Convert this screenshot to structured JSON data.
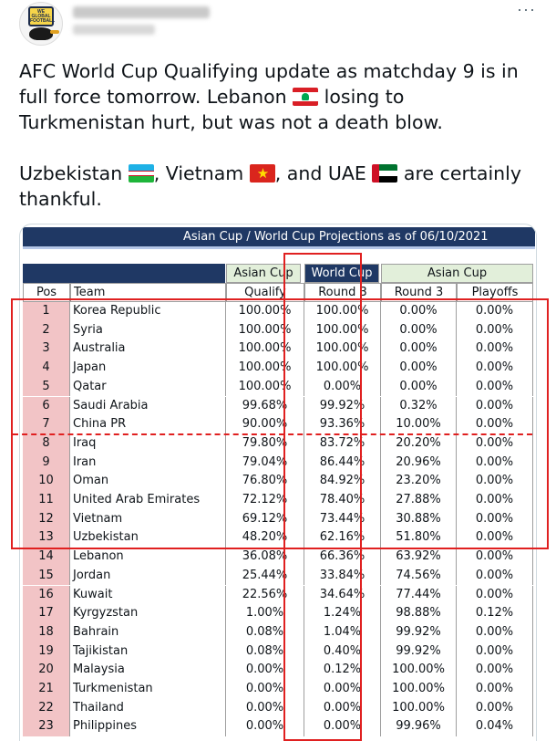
{
  "tweet": {
    "more_label": "···",
    "line1": "AFC World Cup Qualifying update as matchday 9 is in",
    "line2a": "full force tomorrow. Lebanon ",
    "line2b": " losing to",
    "line3": "Turkmenistan hurt, but was not a death blow.",
    "line4a": "Uzbekistan ",
    "line4b": ", Vietnam ",
    "line4c": ", and UAE ",
    "line4d": " are certainly",
    "line5": "thankful.",
    "avatar_text": "WE GLOBAL FOOTBALL"
  },
  "table": {
    "title": "Asian Cup / World Cup Projections as of 06/10/2021",
    "group_headers": {
      "asian_cup_1": "Asian Cup",
      "world_cup": "World Cup",
      "asian_cup_2": "Asian Cup"
    },
    "columns": {
      "pos": "Pos",
      "team": "Team",
      "qualify": "Qualify",
      "wc_round3": "Round 3",
      "ac_round3": "Round 3",
      "playoffs": "Playoffs"
    },
    "rows": [
      {
        "pos": "1",
        "team": "Korea Republic",
        "qualify": "100.00%",
        "wc": "100.00%",
        "r3": "0.00%",
        "po": "0.00%"
      },
      {
        "pos": "2",
        "team": "Syria",
        "qualify": "100.00%",
        "wc": "100.00%",
        "r3": "0.00%",
        "po": "0.00%"
      },
      {
        "pos": "3",
        "team": "Australia",
        "qualify": "100.00%",
        "wc": "100.00%",
        "r3": "0.00%",
        "po": "0.00%"
      },
      {
        "pos": "4",
        "team": "Japan",
        "qualify": "100.00%",
        "wc": "100.00%",
        "r3": "0.00%",
        "po": "0.00%"
      },
      {
        "pos": "5",
        "team": "Qatar",
        "qualify": "100.00%",
        "wc": "0.00%",
        "r3": "0.00%",
        "po": "0.00%"
      },
      {
        "pos": "6",
        "team": "Saudi Arabia",
        "qualify": "99.68%",
        "wc": "99.92%",
        "r3": "0.32%",
        "po": "0.00%"
      },
      {
        "pos": "7",
        "team": "China PR",
        "qualify": "90.00%",
        "wc": "93.36%",
        "r3": "10.00%",
        "po": "0.00%"
      },
      {
        "pos": "8",
        "team": "Iraq",
        "qualify": "79.80%",
        "wc": "83.72%",
        "r3": "20.20%",
        "po": "0.00%"
      },
      {
        "pos": "9",
        "team": "Iran",
        "qualify": "79.04%",
        "wc": "86.44%",
        "r3": "20.96%",
        "po": "0.00%"
      },
      {
        "pos": "10",
        "team": "Oman",
        "qualify": "76.80%",
        "wc": "84.92%",
        "r3": "23.20%",
        "po": "0.00%"
      },
      {
        "pos": "11",
        "team": "United Arab Emirates",
        "qualify": "72.12%",
        "wc": "78.40%",
        "r3": "27.88%",
        "po": "0.00%"
      },
      {
        "pos": "12",
        "team": "Vietnam",
        "qualify": "69.12%",
        "wc": "73.44%",
        "r3": "30.88%",
        "po": "0.00%"
      },
      {
        "pos": "13",
        "team": "Uzbekistan",
        "qualify": "48.20%",
        "wc": "62.16%",
        "r3": "51.80%",
        "po": "0.00%"
      },
      {
        "pos": "14",
        "team": "Lebanon",
        "qualify": "36.08%",
        "wc": "66.36%",
        "r3": "63.92%",
        "po": "0.00%"
      },
      {
        "pos": "15",
        "team": "Jordan",
        "qualify": "25.44%",
        "wc": "33.84%",
        "r3": "74.56%",
        "po": "0.00%"
      },
      {
        "pos": "16",
        "team": "Kuwait",
        "qualify": "22.56%",
        "wc": "34.64%",
        "r3": "77.44%",
        "po": "0.00%"
      },
      {
        "pos": "17",
        "team": "Kyrgyzstan",
        "qualify": "1.00%",
        "wc": "1.24%",
        "r3": "98.88%",
        "po": "0.12%"
      },
      {
        "pos": "18",
        "team": "Bahrain",
        "qualify": "0.08%",
        "wc": "1.04%",
        "r3": "99.92%",
        "po": "0.00%"
      },
      {
        "pos": "19",
        "team": "Tajikistan",
        "qualify": "0.08%",
        "wc": "0.40%",
        "r3": "99.92%",
        "po": "0.00%"
      },
      {
        "pos": "20",
        "team": "Malaysia",
        "qualify": "0.00%",
        "wc": "0.12%",
        "r3": "100.00%",
        "po": "0.00%"
      },
      {
        "pos": "21",
        "team": "Turkmenistan",
        "qualify": "0.00%",
        "wc": "0.00%",
        "r3": "100.00%",
        "po": "0.00%"
      },
      {
        "pos": "22",
        "team": "Thailand",
        "qualify": "0.00%",
        "wc": "0.00%",
        "r3": "100.00%",
        "po": "0.00%"
      },
      {
        "pos": "23",
        "team": "Philippines",
        "qualify": "0.00%",
        "wc": "0.00%",
        "r3": "99.96%",
        "po": "0.04%"
      }
    ]
  },
  "icons": {
    "lebanon": "lebanon-flag-icon",
    "uzbekistan": "uzbekistan-flag-icon",
    "vietnam": "vietnam-flag-icon",
    "uae": "uae-flag-icon"
  },
  "colors": {
    "title_bar": "#1f3864",
    "header_green": "#e2efda",
    "pos_pink": "#f2c4c6",
    "highlight_red": "#e02020"
  }
}
